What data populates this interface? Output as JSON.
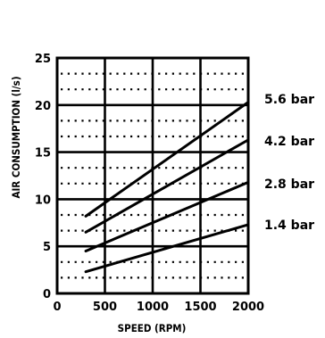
{
  "chart_data": {
    "type": "line",
    "xlabel": "SPEED (RPM)",
    "ylabel": "AIR CONSUMPTION (l/s)",
    "xlim": [
      0,
      2000
    ],
    "ylim": [
      0,
      25
    ],
    "xticks": [
      "0",
      "500",
      "1000",
      "1500",
      "2000"
    ],
    "yticks": [
      "0",
      "5",
      "10",
      "15",
      "20",
      "25"
    ],
    "grid": true,
    "series": [
      {
        "name": "5.6 bar",
        "x": [
          300,
          2000
        ],
        "y": [
          8.2,
          20.3
        ]
      },
      {
        "name": "4.2 bar",
        "x": [
          300,
          2000
        ],
        "y": [
          6.5,
          16.3
        ]
      },
      {
        "name": "2.8 bar",
        "x": [
          300,
          2000
        ],
        "y": [
          4.5,
          11.8
        ]
      },
      {
        "name": "1.4 bar",
        "x": [
          300,
          2000
        ],
        "y": [
          2.3,
          7.3
        ]
      }
    ]
  }
}
